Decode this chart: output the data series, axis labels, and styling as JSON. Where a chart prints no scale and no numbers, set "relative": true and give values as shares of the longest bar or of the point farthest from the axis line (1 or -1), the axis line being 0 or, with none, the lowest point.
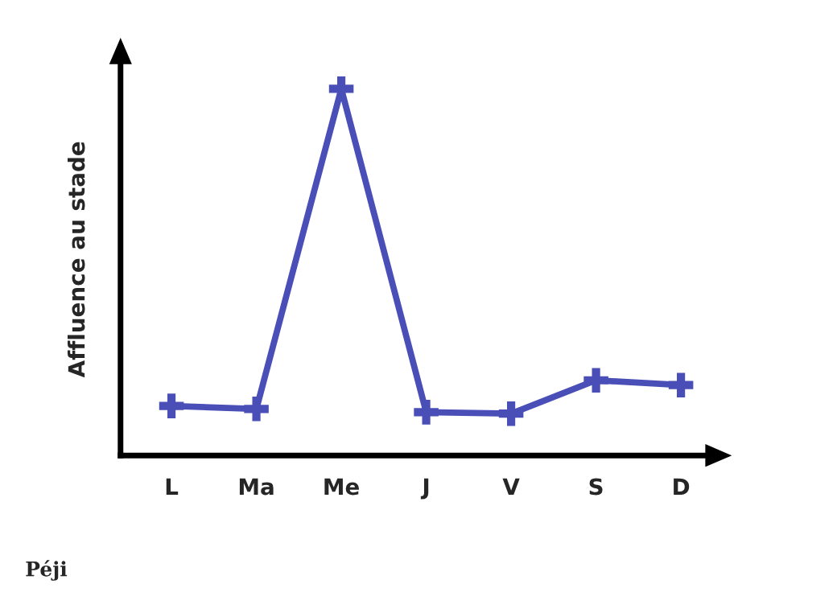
{
  "chart_data": {
    "type": "line",
    "relative": true,
    "ylabel": "Affluence au stade",
    "categories": [
      "L",
      "Ma",
      "Me",
      "J",
      "V",
      "S",
      "D"
    ],
    "series": [
      {
        "color": "#4a4fb8",
        "values": [
          0.135,
          0.127,
          1,
          0.118,
          0.114,
          0.205,
          0.192
        ]
      }
    ],
    "marker": "cross",
    "line_style": "solid",
    "grid": false,
    "legend": false,
    "annotations": [
      "Péji"
    ]
  }
}
